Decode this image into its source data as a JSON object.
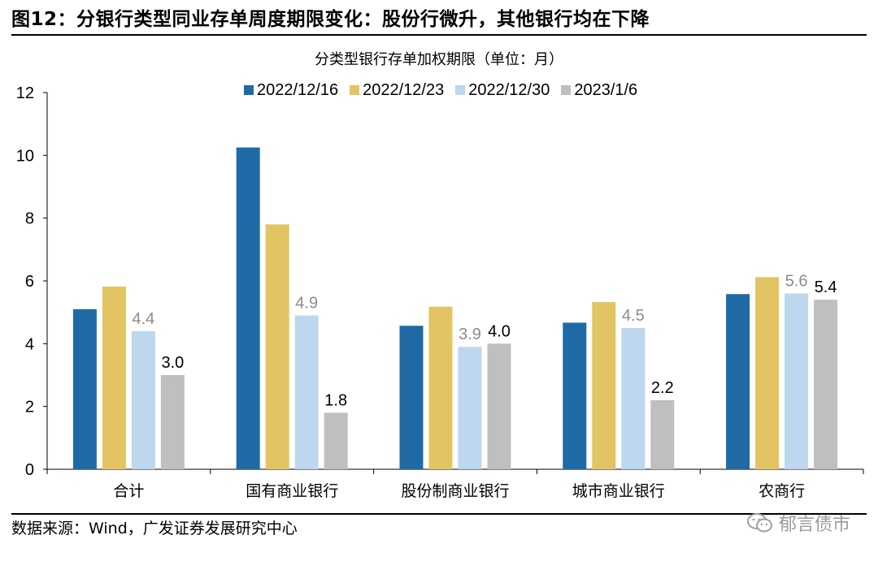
{
  "figure_title": "图12：分银行类型同业存单周度期限变化：股份行微升，其他银行均在下降",
  "source": "数据来源：Wind，广发证券发展研究中心",
  "watermark": "郁言债市",
  "chart_data": {
    "type": "bar",
    "title": "分类型银行存单加权期限（单位：月）",
    "xlabel": "",
    "ylabel": "",
    "ylim": [
      0,
      12
    ],
    "yticks": [
      0,
      2,
      4,
      6,
      8,
      10,
      12
    ],
    "grid": false,
    "legend_position": "top",
    "categories": [
      "合计",
      "国有商业银行",
      "股份制商业银行",
      "城市商业银行",
      "农商行"
    ],
    "series": [
      {
        "name": "2022/12/16",
        "color": "#1f6aa5",
        "values": [
          5.1,
          10.25,
          4.57,
          4.67,
          5.58
        ]
      },
      {
        "name": "2022/12/23",
        "color": "#e3c462",
        "values": [
          5.82,
          7.8,
          5.18,
          5.33,
          6.12
        ]
      },
      {
        "name": "2022/12/30",
        "color": "#bcd7ee",
        "values": [
          4.4,
          4.9,
          3.9,
          4.5,
          5.6
        ]
      },
      {
        "name": "2023/1/6",
        "color": "#bfbfbf",
        "values": [
          3.0,
          1.8,
          4.0,
          2.2,
          5.4
        ]
      }
    ],
    "data_labels": {
      "2022/12/30": {
        "values": [
          "4.4",
          "4.9",
          "3.9",
          "4.5",
          "5.6"
        ],
        "color": "#8c8c8c"
      },
      "2023/1/6": {
        "values": [
          "3.0",
          "1.8",
          "4.0",
          "2.2",
          "5.4"
        ],
        "color": "#000000"
      }
    }
  }
}
